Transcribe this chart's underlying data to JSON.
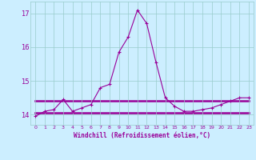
{
  "xlabel": "Windchill (Refroidissement éolien,°C)",
  "background_color": "#cceeff",
  "grid_color": "#99cccc",
  "line_color": "#990099",
  "x_values": [
    0,
    1,
    2,
    3,
    4,
    5,
    6,
    7,
    8,
    9,
    10,
    11,
    12,
    13,
    14,
    15,
    16,
    17,
    18,
    19,
    20,
    21,
    22,
    23
  ],
  "main_line": [
    13.95,
    14.1,
    14.15,
    14.45,
    14.1,
    14.2,
    14.3,
    14.8,
    14.9,
    15.85,
    16.3,
    17.1,
    16.7,
    15.55,
    14.5,
    14.25,
    14.1,
    14.1,
    14.15,
    14.2,
    14.3,
    14.4,
    14.5,
    14.5
  ],
  "flat_line1_x": [
    0,
    23
  ],
  "flat_line1_y": [
    14.05,
    14.05
  ],
  "flat_line2_x": [
    0,
    23
  ],
  "flat_line2_y": [
    14.4,
    14.4
  ],
  "ylim": [
    13.7,
    17.35
  ],
  "yticks": [
    14,
    15,
    16,
    17
  ],
  "xlim": [
    -0.5,
    23.5
  ]
}
